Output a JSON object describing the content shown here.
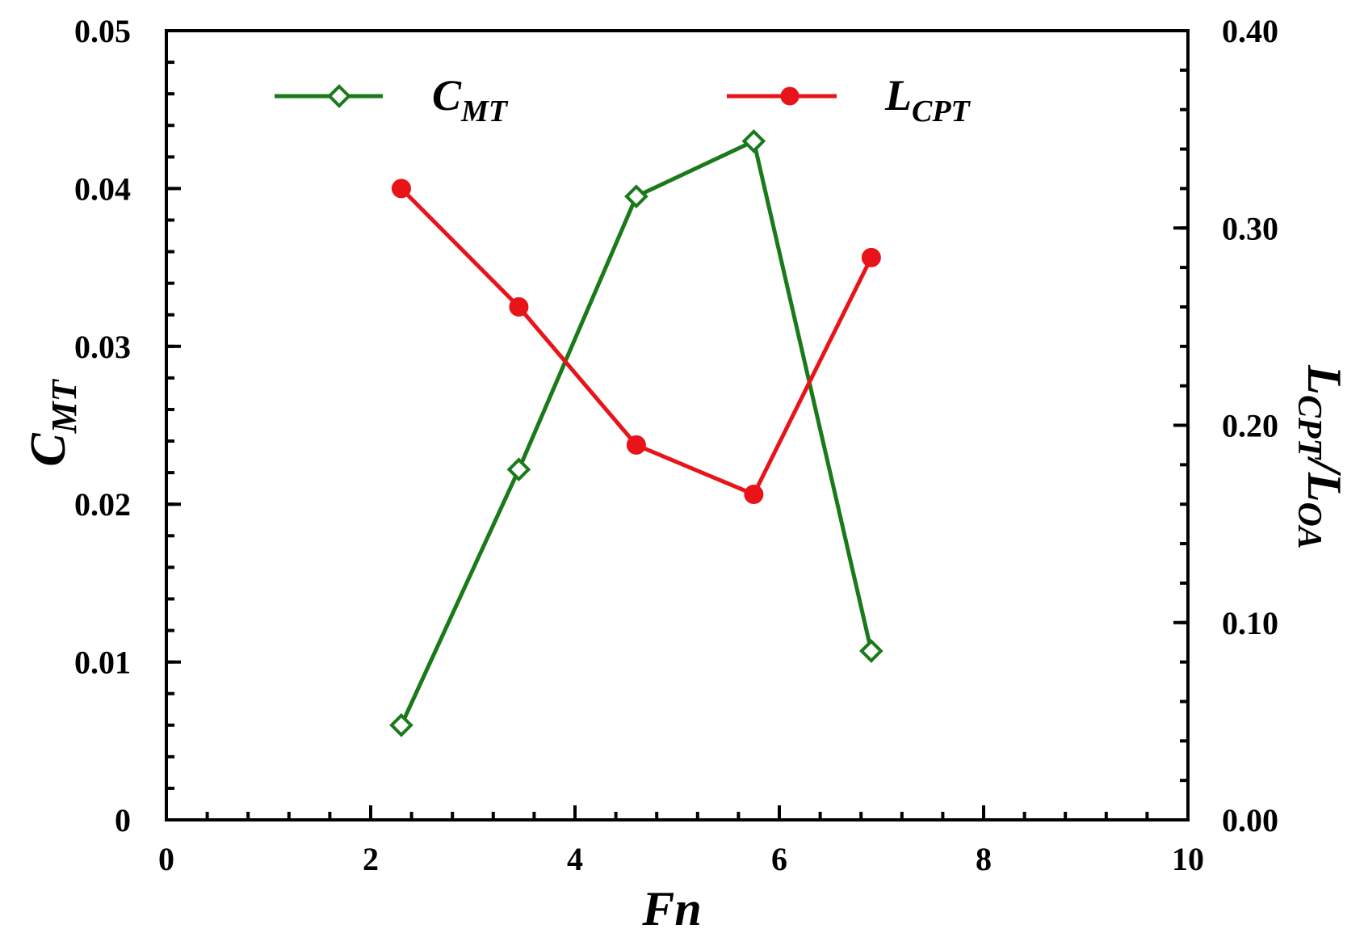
{
  "chart_data": {
    "type": "line",
    "x_axis": {
      "title_main": "Fn",
      "range": [
        0,
        10
      ],
      "ticks": [
        0,
        2,
        4,
        6,
        8,
        10
      ],
      "tick_labels": [
        "0",
        "2",
        "4",
        "6",
        "8",
        "10"
      ],
      "minor_step": 0.4
    },
    "y_axis_left": {
      "title_main": "C",
      "title_sub": "MT",
      "range": [
        0,
        0.05
      ],
      "ticks": [
        0,
        0.01,
        0.02,
        0.03,
        0.04,
        0.05
      ],
      "tick_labels": [
        "0",
        "0.01",
        "0.02",
        "0.03",
        "0.04",
        "0.05"
      ],
      "minor_step": 0.002
    },
    "y_axis_right": {
      "title_main_1": "L",
      "title_sub_1": "CPT",
      "title_sep": "/",
      "title_main_2": "L",
      "title_sub_2": "OA",
      "range": [
        0,
        0.4
      ],
      "ticks": [
        0,
        0.1,
        0.2,
        0.3,
        0.4
      ],
      "tick_labels": [
        "0.00",
        "0.10",
        "0.20",
        "0.30",
        "0.40"
      ],
      "minor_step": 0.02
    },
    "series": [
      {
        "name_main": "C",
        "name_sub": "MT",
        "axis": "left",
        "color": "#1a7a1a",
        "marker": "diamond",
        "x": [
          2.3,
          3.45,
          4.6,
          5.75,
          6.9
        ],
        "y": [
          0.006,
          0.0222,
          0.0395,
          0.043,
          0.0107
        ]
      },
      {
        "name_main": "L",
        "name_sub": "CPT",
        "axis": "right",
        "color": "#e8141a",
        "marker": "circle",
        "x": [
          2.3,
          3.45,
          4.6,
          5.75,
          6.9
        ],
        "y": [
          0.32,
          0.26,
          0.19,
          0.165,
          0.285
        ]
      }
    ],
    "legend_position": "top",
    "grid": false
  }
}
